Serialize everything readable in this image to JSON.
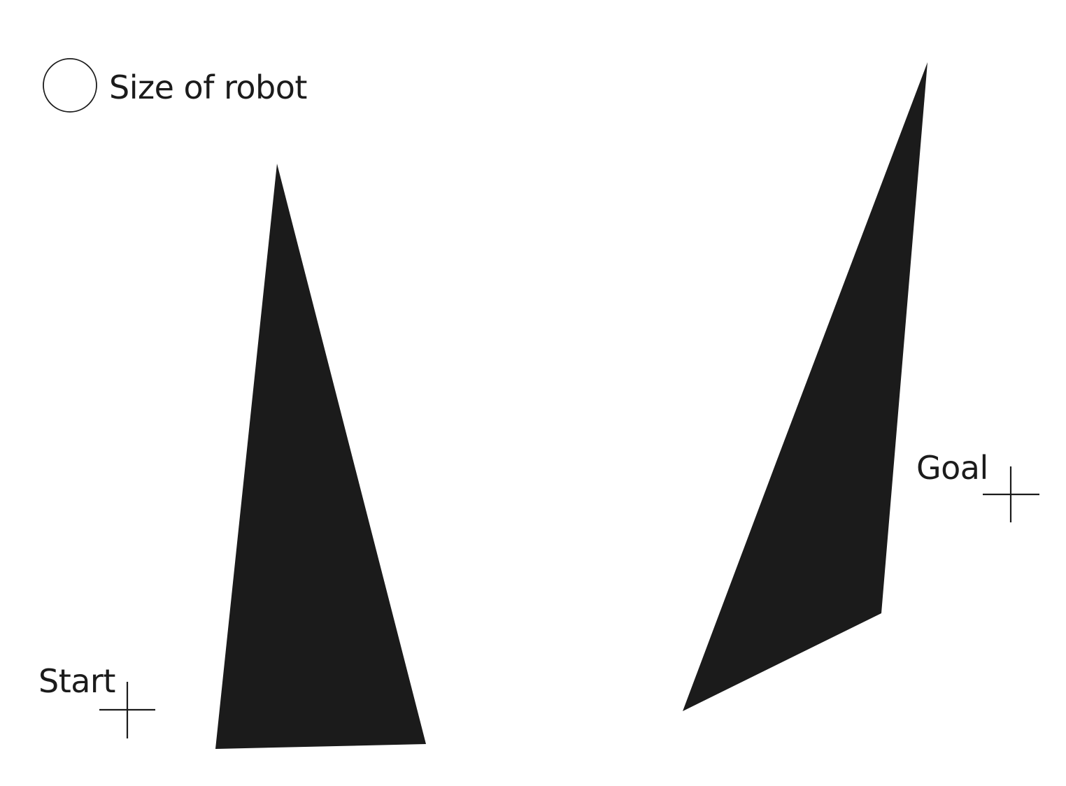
{
  "legend": {
    "robot_label": "Size of robot"
  },
  "markers": {
    "start_label": "Start",
    "goal_label": "Goal"
  },
  "colors": {
    "ink": "#1b1b1b",
    "background": "#ffffff"
  }
}
